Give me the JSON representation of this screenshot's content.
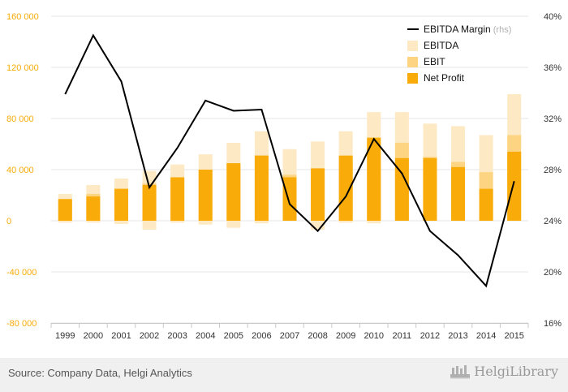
{
  "chart_data": {
    "type": "bar",
    "categories": [
      "1999",
      "2000",
      "2001",
      "2002",
      "2003",
      "2004",
      "2005",
      "2006",
      "2007",
      "2008",
      "2009",
      "2010",
      "2011",
      "2012",
      "2013",
      "2014",
      "2015"
    ],
    "series": [
      {
        "name": "EBITDA",
        "kind": "bar",
        "axis": "left",
        "color": "#fde9c4",
        "values": [
          21000,
          28000,
          33000,
          39000,
          44000,
          52000,
          61000,
          70000,
          56000,
          62000,
          70000,
          85000,
          85000,
          76000,
          74000,
          67000,
          99000
        ]
      },
      {
        "name": "EBIT",
        "kind": "bar",
        "axis": "left",
        "color": "#fdd481",
        "values": [
          16000,
          21000,
          25000,
          29000,
          33000,
          40000,
          45000,
          51000,
          36000,
          41000,
          49000,
          62000,
          61000,
          50000,
          46000,
          38000,
          67000
        ]
      },
      {
        "name": "Net Profit",
        "kind": "bar",
        "axis": "left",
        "color": "#f9ac09",
        "values": [
          17000,
          19000,
          25000,
          28000,
          34000,
          40000,
          45000,
          51000,
          34000,
          41000,
          51000,
          65000,
          49000,
          49000,
          42000,
          25000,
          54000
        ]
      },
      {
        "name": "EBITDA Margin",
        "kind": "line",
        "axis": "right",
        "color": "#000000",
        "values": [
          33.9,
          38.5,
          34.9,
          26.6,
          29.7,
          33.4,
          32.6,
          32.7,
          25.3,
          23.2,
          25.9,
          30.4,
          27.7,
          23.2,
          21.3,
          18.9,
          27.1
        ]
      }
    ],
    "negative_bars": {
      "name": "EBITDA",
      "values": [
        -1500,
        -1500,
        -2500,
        -7000,
        -1500,
        -3000,
        -5500,
        -2000,
        0,
        -7000,
        -1500,
        -2000,
        0,
        0,
        0,
        0,
        0
      ]
    },
    "legend": {
      "position": "top-right",
      "items": [
        {
          "label": "EBITDA Margin",
          "suffix": "(rhs)",
          "marker": "line",
          "color": "#000000"
        },
        {
          "label": "EBITDA",
          "marker": "square",
          "color": "#fde9c4"
        },
        {
          "label": "EBIT",
          "marker": "square",
          "color": "#fdd481"
        },
        {
          "label": "Net Profit",
          "marker": "square",
          "color": "#f9ac09"
        }
      ]
    },
    "y_left": {
      "min": -80000,
      "max": 160000,
      "ticks": [
        "-80 000",
        "-40 000",
        "0",
        "40 000",
        "80 000",
        "120 000",
        "160 000"
      ],
      "tick_color": "#f9ac09"
    },
    "y_right": {
      "min": 16,
      "max": 40,
      "ticks": [
        "16%",
        "20%",
        "24%",
        "28%",
        "32%",
        "36%",
        "40%"
      ]
    },
    "grid": true,
    "title": "",
    "xlabel": "",
    "ylabel": ""
  },
  "footer": {
    "source": "Source: Company Data, Helgi Analytics",
    "brand": "HelgiLibrary"
  }
}
